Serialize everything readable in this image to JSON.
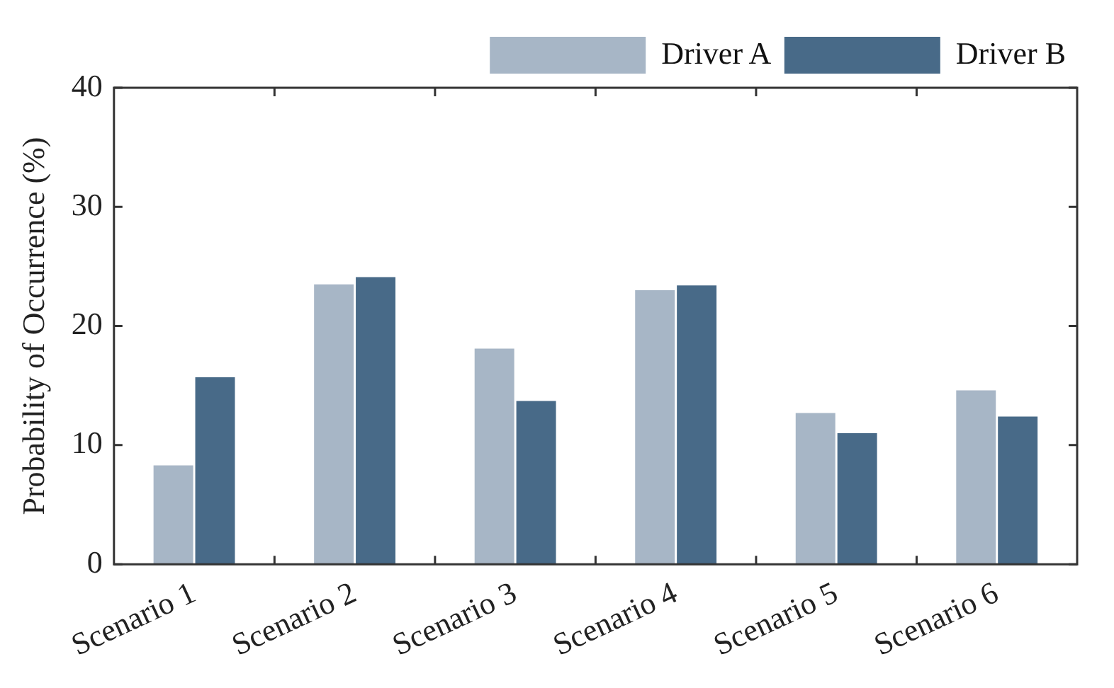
{
  "chart_data": {
    "type": "bar",
    "ylabel": "Probability of Occurrence (%)",
    "categories": [
      "Scenario 1",
      "Scenario 2",
      "Scenario 3",
      "Scenario 4",
      "Scenario 5",
      "Scenario 6"
    ],
    "series": [
      {
        "name": "Driver A",
        "color": "#a7b6c6",
        "values": [
          8.3,
          23.5,
          18.1,
          23.0,
          12.7,
          14.6
        ]
      },
      {
        "name": "Driver B",
        "color": "#486a88",
        "values": [
          15.7,
          24.1,
          13.7,
          23.4,
          11.0,
          12.4
        ]
      }
    ],
    "ylim": [
      0,
      40
    ],
    "yticks": [
      0,
      10,
      20,
      30,
      40
    ],
    "grid": false,
    "legend": "top right"
  }
}
